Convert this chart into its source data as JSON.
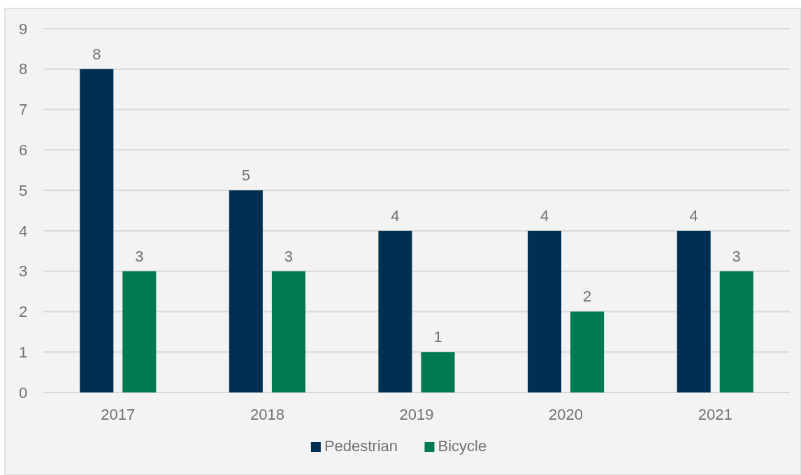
{
  "chart_data": {
    "type": "bar",
    "categories": [
      "2017",
      "2018",
      "2019",
      "2020",
      "2021"
    ],
    "series": [
      {
        "name": "Pedestrian",
        "color": "#002f52",
        "values": [
          8,
          5,
          4,
          4,
          4
        ]
      },
      {
        "name": "Bicycle",
        "color": "#007a53",
        "values": [
          3,
          3,
          1,
          2,
          3
        ]
      }
    ],
    "ylim": [
      0,
      9
    ],
    "yticks": [
      0,
      1,
      2,
      3,
      4,
      5,
      6,
      7,
      8,
      9
    ],
    "grid": "y",
    "legend": "bottom",
    "data_labels": true
  }
}
